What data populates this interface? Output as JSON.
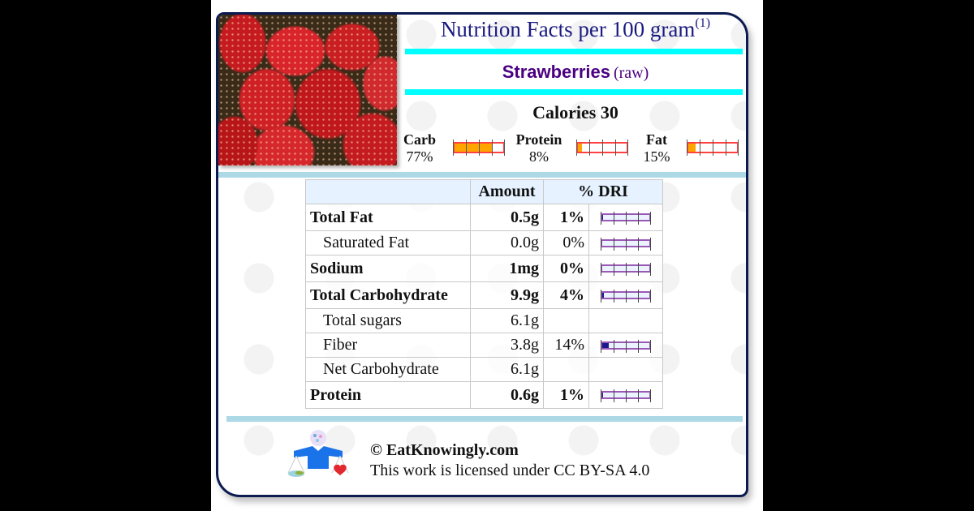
{
  "header": {
    "title": "Nutrition Facts per 100 gram",
    "title_footnote": "(1)",
    "food_name": "Strawberries",
    "food_qualifier": "(raw)"
  },
  "calories": {
    "label": "Calories 30",
    "value": 30
  },
  "macros": [
    {
      "name": "Carb",
      "percent_label": "77%",
      "percent": 77
    },
    {
      "name": "Protein",
      "percent_label": "8%",
      "percent": 8
    },
    {
      "name": "Fat",
      "percent_label": "15%",
      "percent": 15
    }
  ],
  "table": {
    "headers": [
      "",
      "Amount",
      "% DRI"
    ],
    "rows": [
      {
        "name": "Total Fat",
        "amount": "0.5g",
        "dri": "1%",
        "dri_value": 1,
        "bold": true,
        "indent": false
      },
      {
        "name": "Saturated Fat",
        "amount": "0.0g",
        "dri": "0%",
        "dri_value": 0,
        "bold": false,
        "indent": true
      },
      {
        "name": "Sodium",
        "amount": "1mg",
        "dri": "0%",
        "dri_value": 0,
        "bold": true,
        "indent": false
      },
      {
        "name": "Total Carbohydrate",
        "amount": "9.9g",
        "dri": "4%",
        "dri_value": 4,
        "bold": true,
        "indent": false
      },
      {
        "name": "Total sugars",
        "amount": "6.1g",
        "dri": "",
        "dri_value": null,
        "bold": false,
        "indent": true
      },
      {
        "name": "Fiber",
        "amount": "3.8g",
        "dri": "14%",
        "dri_value": 14,
        "bold": false,
        "indent": true
      },
      {
        "name": "Net Carbohydrate",
        "amount": "6.1g",
        "dri": "",
        "dri_value": null,
        "bold": false,
        "indent": true
      },
      {
        "name": "Protein",
        "amount": "0.6g",
        "dri": "1%",
        "dri_value": 1,
        "bold": true,
        "indent": false
      }
    ]
  },
  "footer": {
    "copyright": "© EatKnowingly.com",
    "license": "This work is licensed under CC BY-SA 4.0"
  },
  "colors": {
    "title": "#1a1a80",
    "food_name": "#4b0082",
    "cyan_bar": "#00ffff",
    "separator": "#add8e6",
    "macro_fill": "#ffa500",
    "macro_border": "#ff4040",
    "dri_border": "#9b59b6",
    "dri_fill": "#1a1a8c"
  }
}
